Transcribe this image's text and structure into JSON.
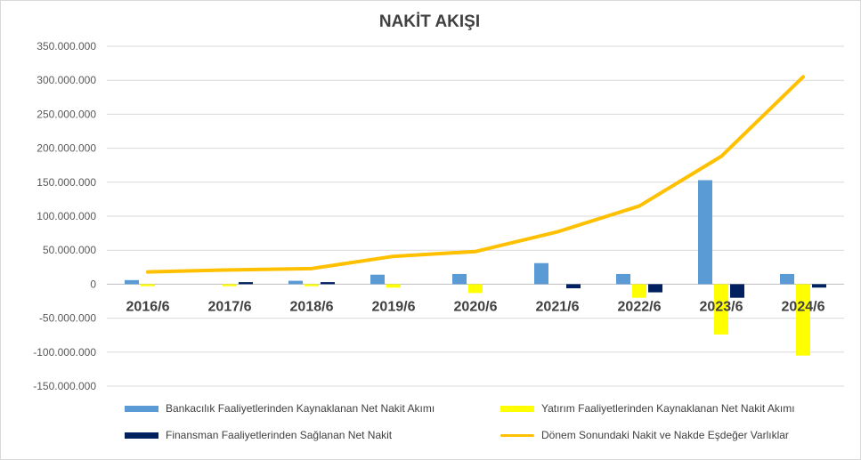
{
  "colors": {
    "banking": "#5b9bd5",
    "investing": "#ffff00",
    "financing": "#002060",
    "cash": "#ffc000",
    "grid": "#d9d9d9",
    "axis_text": "#595959"
  },
  "chart_data": {
    "type": "bar",
    "title": "NAKİT AKIŞI",
    "categories": [
      "2016/6",
      "2017/6",
      "2018/6",
      "2019/6",
      "2020/6",
      "2021/6",
      "2022/6",
      "2023/6",
      "2024/6"
    ],
    "ylim": [
      -150000000,
      350000000
    ],
    "ytick_labels": [
      "350.000.000",
      "300.000.000",
      "250.000.000",
      "200.000.000",
      "150.000.000",
      "100.000.000",
      "50.000.000",
      "0",
      "-50.000.000",
      "-100.000.000",
      "-150.000.000"
    ],
    "ytick_values": [
      350000000,
      300000000,
      250000000,
      200000000,
      150000000,
      100000000,
      50000000,
      0,
      -50000000,
      -100000000,
      -150000000
    ],
    "grid": true,
    "legend_position": "bottom",
    "series": [
      {
        "name": "Bankacılık Faaliyetlerinden Kaynaklanan Net Nakit Akımı",
        "type": "bar",
        "color_key": "banking",
        "values": [
          6000000,
          0,
          5000000,
          14000000,
          15000000,
          31000000,
          15000000,
          153000000,
          15000000
        ]
      },
      {
        "name": "Yatırım Faaliyetlerinden Kaynaklanan Net Nakit Akımı",
        "type": "bar",
        "color_key": "investing",
        "values": [
          -3000000,
          -3000000,
          -3000000,
          -5000000,
          -13000000,
          0,
          -20000000,
          -74000000,
          -105000000
        ]
      },
      {
        "name": "Finansman Faaliyetlerinden Sağlanan Net Nakit",
        "type": "bar",
        "color_key": "financing",
        "values": [
          0,
          3000000,
          3000000,
          0,
          0,
          -6000000,
          -12000000,
          -20000000,
          -5000000
        ]
      },
      {
        "name": "Dönem Sonundaki Nakit ve Nakde Eşdeğer Varlıklar",
        "type": "line",
        "color_key": "cash",
        "values": [
          18000000,
          21000000,
          23000000,
          41000000,
          48000000,
          77000000,
          115000000,
          188000000,
          305000000
        ]
      }
    ]
  }
}
